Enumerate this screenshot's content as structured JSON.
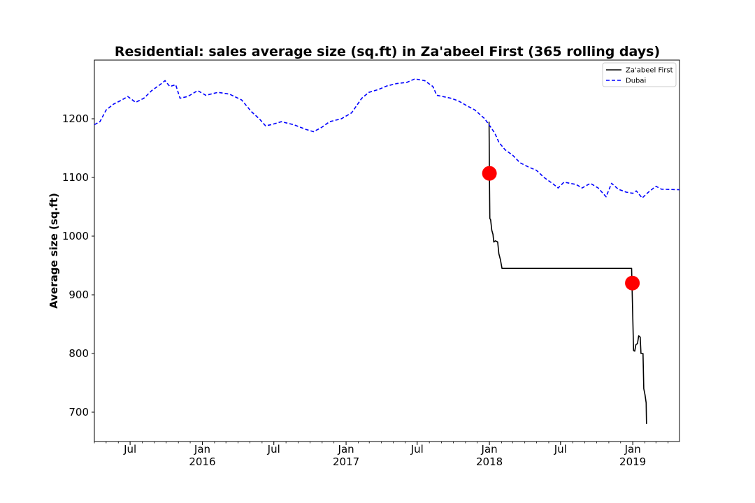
{
  "chart_data": {
    "type": "line",
    "title": "Residential: sales average size (sq.ft) in Za'abeel First (365 rolling days)",
    "xlabel": "",
    "ylabel": "Average size (sq.ft)",
    "xlim": [
      "2015-04-01",
      "2019-04-30"
    ],
    "ylim": [
      650,
      1300
    ],
    "yticks": [
      700,
      800,
      900,
      1000,
      1100,
      1200
    ],
    "xticks": [
      {
        "date": "2015-07-01",
        "label": "Jul",
        "year": ""
      },
      {
        "date": "2016-01-01",
        "label": "Jan",
        "year": "2016"
      },
      {
        "date": "2016-07-01",
        "label": "Jul",
        "year": ""
      },
      {
        "date": "2017-01-01",
        "label": "Jan",
        "year": "2017"
      },
      {
        "date": "2017-07-01",
        "label": "Jul",
        "year": ""
      },
      {
        "date": "2018-01-01",
        "label": "Jan",
        "year": "2018"
      },
      {
        "date": "2018-07-01",
        "label": "Jul",
        "year": ""
      },
      {
        "date": "2019-01-01",
        "label": "Jan",
        "year": "2019"
      }
    ],
    "grid": false,
    "legend_position": "top-right",
    "series": [
      {
        "name": "Za'abeel First",
        "color": "#000000",
        "style": "solid",
        "points": [
          [
            "2017-12-31",
            1195
          ],
          [
            "2018-01-01",
            1107
          ],
          [
            "2018-01-02",
            1030
          ],
          [
            "2018-01-04",
            1028
          ],
          [
            "2018-01-07",
            1010
          ],
          [
            "2018-01-10",
            1003
          ],
          [
            "2018-01-12",
            990
          ],
          [
            "2018-01-16",
            992
          ],
          [
            "2018-01-22",
            990
          ],
          [
            "2018-01-25",
            970
          ],
          [
            "2018-01-29",
            960
          ],
          [
            "2018-02-02",
            945
          ],
          [
            "2018-04-15",
            945
          ],
          [
            "2018-08-01",
            945
          ],
          [
            "2018-11-01",
            945
          ],
          [
            "2018-12-29",
            945
          ],
          [
            "2018-12-30",
            920
          ],
          [
            "2019-01-03",
            805
          ],
          [
            "2019-01-06",
            804
          ],
          [
            "2019-01-09",
            815
          ],
          [
            "2019-01-13",
            817
          ],
          [
            "2019-01-16",
            830
          ],
          [
            "2019-01-20",
            828
          ],
          [
            "2019-01-22",
            800
          ],
          [
            "2019-01-27",
            800
          ],
          [
            "2019-01-29",
            740
          ],
          [
            "2019-02-01",
            730
          ],
          [
            "2019-02-04",
            716
          ],
          [
            "2019-02-05",
            680
          ]
        ]
      },
      {
        "name": "Dubai",
        "color": "#0000ff",
        "style": "dashed",
        "points": [
          [
            "2015-04-01",
            1190
          ],
          [
            "2015-04-15",
            1195
          ],
          [
            "2015-05-01",
            1215
          ],
          [
            "2015-05-20",
            1225
          ],
          [
            "2015-06-10",
            1232
          ],
          [
            "2015-06-25",
            1238
          ],
          [
            "2015-07-15",
            1228
          ],
          [
            "2015-08-05",
            1235
          ],
          [
            "2015-08-25",
            1248
          ],
          [
            "2015-09-15",
            1258
          ],
          [
            "2015-09-28",
            1265
          ],
          [
            "2015-10-10",
            1255
          ],
          [
            "2015-10-25",
            1258
          ],
          [
            "2015-11-05",
            1235
          ],
          [
            "2015-11-25",
            1238
          ],
          [
            "2015-12-20",
            1248
          ],
          [
            "2016-01-10",
            1240
          ],
          [
            "2016-02-10",
            1245
          ],
          [
            "2016-03-10",
            1242
          ],
          [
            "2016-04-10",
            1232
          ],
          [
            "2016-05-05",
            1212
          ],
          [
            "2016-05-25",
            1200
          ],
          [
            "2016-06-10",
            1188
          ],
          [
            "2016-06-25",
            1190
          ],
          [
            "2016-07-20",
            1195
          ],
          [
            "2016-08-20",
            1190
          ],
          [
            "2016-09-20",
            1182
          ],
          [
            "2016-10-10",
            1178
          ],
          [
            "2016-10-30",
            1185
          ],
          [
            "2016-11-20",
            1195
          ],
          [
            "2016-12-20",
            1200
          ],
          [
            "2017-01-15",
            1210
          ],
          [
            "2017-02-10",
            1235
          ],
          [
            "2017-02-28",
            1245
          ],
          [
            "2017-03-25",
            1250
          ],
          [
            "2017-04-15",
            1256
          ],
          [
            "2017-05-10",
            1260
          ],
          [
            "2017-06-05",
            1262
          ],
          [
            "2017-06-25",
            1268
          ],
          [
            "2017-07-20",
            1265
          ],
          [
            "2017-08-10",
            1255
          ],
          [
            "2017-08-20",
            1240
          ],
          [
            "2017-09-25",
            1235
          ],
          [
            "2017-10-15",
            1230
          ],
          [
            "2017-11-05",
            1222
          ],
          [
            "2017-11-25",
            1215
          ],
          [
            "2017-12-20",
            1200
          ],
          [
            "2018-01-05",
            1185
          ],
          [
            "2018-01-15",
            1175
          ],
          [
            "2018-01-25",
            1160
          ],
          [
            "2018-02-10",
            1147
          ],
          [
            "2018-03-01",
            1138
          ],
          [
            "2018-03-20",
            1125
          ],
          [
            "2018-04-10",
            1118
          ],
          [
            "2018-05-01",
            1112
          ],
          [
            "2018-05-20",
            1100
          ],
          [
            "2018-06-10",
            1090
          ],
          [
            "2018-06-25",
            1082
          ],
          [
            "2018-07-10",
            1092
          ],
          [
            "2018-08-10",
            1088
          ],
          [
            "2018-08-25",
            1082
          ],
          [
            "2018-09-15",
            1090
          ],
          [
            "2018-10-05",
            1082
          ],
          [
            "2018-10-25",
            1067
          ],
          [
            "2018-11-08",
            1090
          ],
          [
            "2018-11-25",
            1080
          ],
          [
            "2018-12-15",
            1075
          ],
          [
            "2019-01-01",
            1073
          ],
          [
            "2019-01-10",
            1077
          ],
          [
            "2019-01-25",
            1065
          ],
          [
            "2019-02-10",
            1075
          ],
          [
            "2019-03-01",
            1085
          ],
          [
            "2019-03-15",
            1080
          ],
          [
            "2019-04-30",
            1079
          ]
        ]
      }
    ],
    "markers": [
      {
        "date": "2018-01-01",
        "value": 1107,
        "color": "#ff0000"
      },
      {
        "date": "2018-12-31",
        "value": 920,
        "color": "#ff0000"
      }
    ]
  }
}
